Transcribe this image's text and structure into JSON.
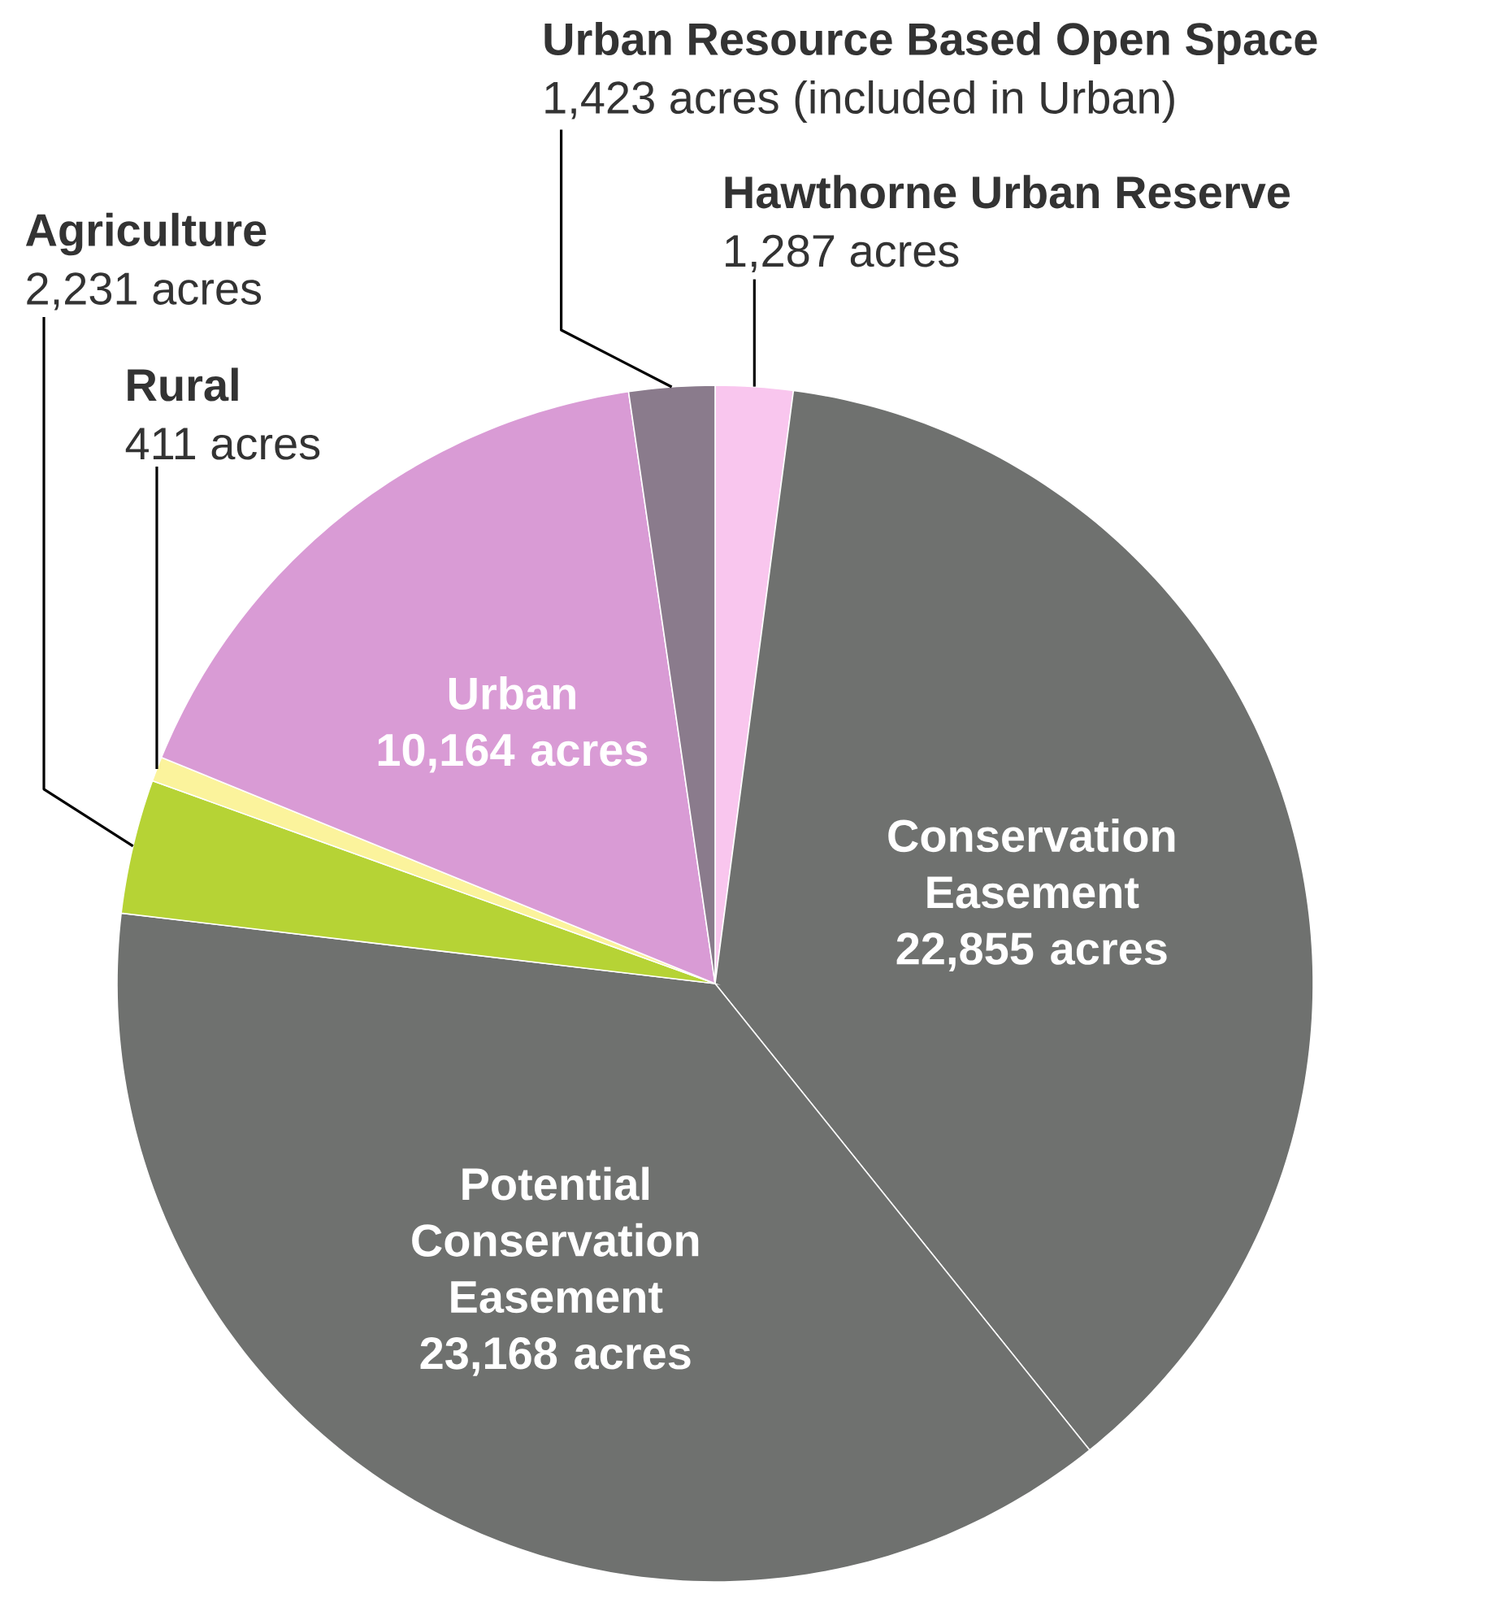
{
  "chart_data": {
    "type": "pie",
    "categories": [
      "Hawthorne Urban Reserve",
      "Conservation Easement",
      "Potential Conservation Easement",
      "Agriculture",
      "Rural",
      "Urban",
      "Urban Resource Based Open Space"
    ],
    "values": [
      1287,
      22855,
      23168,
      2231,
      411,
      10164,
      1423
    ],
    "value_labels": [
      "1,287 acres",
      "22,855 acres",
      "23,168 acres",
      "2,231 acres",
      "411 acres",
      "10,164 acres",
      "1,423 acres (included in Urban)"
    ],
    "colors": [
      "#f9c6ee",
      "#6f716f",
      "#6f716f",
      "#b6d335",
      "#fbf39c",
      "#d99bd5",
      "#8a7b8c"
    ]
  }
}
